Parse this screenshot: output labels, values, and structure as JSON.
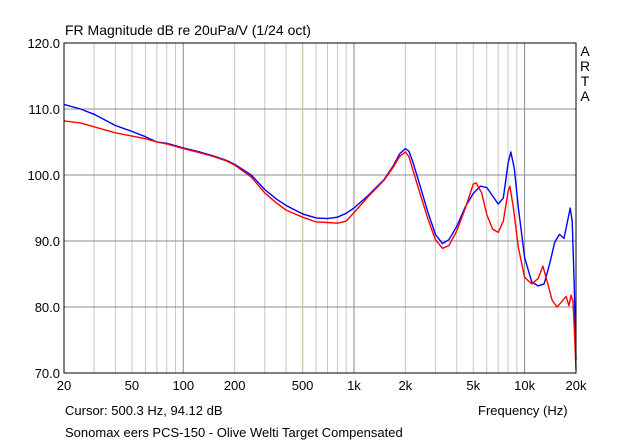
{
  "header": {
    "title": "FR Magnitude dB re 20uPa/V (1/24 oct)",
    "brand": "ARTA"
  },
  "footer": {
    "cursor": "Cursor: 500.3 Hz, 94.12 dB",
    "caption": "Sonomax eers PCS-150 - Olive Welti Target Compensated"
  },
  "chart_data": {
    "type": "line",
    "title": "FR Magnitude dB re 20uPa/V (1/24 oct)",
    "xlabel": "Frequency (Hz)",
    "ylabel": "",
    "xscale": "log",
    "xlim": [
      20,
      20000
    ],
    "ylim": [
      70,
      120
    ],
    "grid": true,
    "y_ticks": [
      70,
      80,
      90,
      100,
      110,
      120
    ],
    "y_tick_labels": [
      "70.0",
      "80.0",
      "90.0",
      "100.0",
      "110.0",
      "120.0"
    ],
    "x_tick_labels": [
      {
        "value": 20,
        "label": "20"
      },
      {
        "value": 50,
        "label": "50"
      },
      {
        "value": 100,
        "label": "100"
      },
      {
        "value": 200,
        "label": "200"
      },
      {
        "value": 500,
        "label": "500"
      },
      {
        "value": 1000,
        "label": "1k"
      },
      {
        "value": 2000,
        "label": "2k"
      },
      {
        "value": 5000,
        "label": "5k"
      },
      {
        "value": 10000,
        "label": "10k"
      },
      {
        "value": 20000,
        "label": "20k"
      }
    ],
    "cursor": {
      "x": 500.3,
      "y": 94.12,
      "color": "#c8c8a0"
    },
    "series": [
      {
        "color": "#0000ff",
        "points": [
          [
            20,
            110.7
          ],
          [
            25,
            110.0
          ],
          [
            30,
            109.2
          ],
          [
            35,
            108.3
          ],
          [
            40,
            107.5
          ],
          [
            50,
            106.6
          ],
          [
            60,
            105.8
          ],
          [
            70,
            105.0
          ],
          [
            80,
            104.8
          ],
          [
            100,
            104.1
          ],
          [
            120,
            103.6
          ],
          [
            150,
            102.9
          ],
          [
            180,
            102.2
          ],
          [
            200,
            101.6
          ],
          [
            250,
            100.0
          ],
          [
            300,
            97.8
          ],
          [
            350,
            96.4
          ],
          [
            400,
            95.4
          ],
          [
            450,
            94.7
          ],
          [
            500,
            94.1
          ],
          [
            600,
            93.5
          ],
          [
            700,
            93.4
          ],
          [
            800,
            93.6
          ],
          [
            900,
            94.2
          ],
          [
            1000,
            95.0
          ],
          [
            1200,
            96.8
          ],
          [
            1500,
            99.3
          ],
          [
            1700,
            101.4
          ],
          [
            1850,
            103.2
          ],
          [
            2000,
            104.0
          ],
          [
            2100,
            103.6
          ],
          [
            2200,
            102.2
          ],
          [
            2400,
            99.0
          ],
          [
            2700,
            94.5
          ],
          [
            3000,
            91.0
          ],
          [
            3300,
            89.6
          ],
          [
            3600,
            90.2
          ],
          [
            4000,
            92.2
          ],
          [
            4500,
            95.2
          ],
          [
            5000,
            97.2
          ],
          [
            5500,
            98.3
          ],
          [
            6000,
            98.1
          ],
          [
            6500,
            96.8
          ],
          [
            7000,
            95.6
          ],
          [
            7500,
            96.5
          ],
          [
            8000,
            101.8
          ],
          [
            8300,
            103.5
          ],
          [
            8700,
            101.0
          ],
          [
            9200,
            95.0
          ],
          [
            10000,
            87.5
          ],
          [
            11000,
            83.8
          ],
          [
            12000,
            83.2
          ],
          [
            13000,
            83.5
          ],
          [
            14000,
            86.5
          ],
          [
            15000,
            89.8
          ],
          [
            16000,
            91.0
          ],
          [
            17000,
            90.4
          ],
          [
            18000,
            93.5
          ],
          [
            18500,
            95.0
          ],
          [
            19000,
            93.0
          ],
          [
            19500,
            84.0
          ],
          [
            20000,
            72.0
          ]
        ]
      },
      {
        "color": "#ff0000",
        "points": [
          [
            20,
            108.2
          ],
          [
            25,
            107.9
          ],
          [
            30,
            107.3
          ],
          [
            35,
            106.8
          ],
          [
            40,
            106.4
          ],
          [
            50,
            105.9
          ],
          [
            60,
            105.5
          ],
          [
            70,
            105.0
          ],
          [
            80,
            104.7
          ],
          [
            100,
            104.0
          ],
          [
            120,
            103.5
          ],
          [
            150,
            102.8
          ],
          [
            180,
            102.1
          ],
          [
            200,
            101.5
          ],
          [
            250,
            99.7
          ],
          [
            300,
            97.3
          ],
          [
            350,
            95.8
          ],
          [
            400,
            94.7
          ],
          [
            450,
            94.1
          ],
          [
            500,
            93.6
          ],
          [
            600,
            92.9
          ],
          [
            700,
            92.8
          ],
          [
            800,
            92.7
          ],
          [
            900,
            93.0
          ],
          [
            1000,
            94.3
          ],
          [
            1200,
            96.6
          ],
          [
            1500,
            99.2
          ],
          [
            1700,
            101.2
          ],
          [
            1850,
            102.8
          ],
          [
            2000,
            103.5
          ],
          [
            2100,
            102.8
          ],
          [
            2200,
            101.0
          ],
          [
            2400,
            97.8
          ],
          [
            2700,
            93.5
          ],
          [
            3000,
            90.2
          ],
          [
            3300,
            88.9
          ],
          [
            3600,
            89.3
          ],
          [
            4000,
            91.5
          ],
          [
            4500,
            95.0
          ],
          [
            5000,
            98.6
          ],
          [
            5200,
            98.8
          ],
          [
            5600,
            97.3
          ],
          [
            6000,
            94.0
          ],
          [
            6500,
            91.8
          ],
          [
            7000,
            91.3
          ],
          [
            7500,
            93.0
          ],
          [
            8000,
            97.5
          ],
          [
            8200,
            98.3
          ],
          [
            8600,
            95.0
          ],
          [
            9200,
            89.0
          ],
          [
            10000,
            84.5
          ],
          [
            11000,
            83.5
          ],
          [
            12000,
            84.3
          ],
          [
            12800,
            86.2
          ],
          [
            13500,
            84.0
          ],
          [
            14500,
            81.0
          ],
          [
            15500,
            80.0
          ],
          [
            16500,
            80.8
          ],
          [
            17500,
            81.6
          ],
          [
            18200,
            80.2
          ],
          [
            18700,
            81.8
          ],
          [
            19200,
            80.8
          ],
          [
            19600,
            76.0
          ],
          [
            20000,
            70.5
          ]
        ]
      }
    ]
  }
}
